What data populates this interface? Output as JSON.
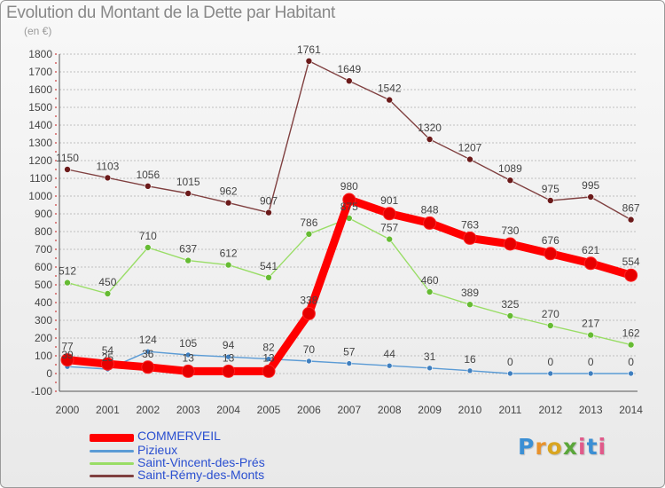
{
  "chart_data": {
    "type": "line",
    "title": "Evolution du Montant de la Dette par Habitant",
    "unit_label": "(en €)",
    "xlabel": "",
    "ylabel": "",
    "categories": [
      "2000",
      "2001",
      "2002",
      "2003",
      "2004",
      "2005",
      "2006",
      "2007",
      "2008",
      "2009",
      "2010",
      "2011",
      "2012",
      "2013",
      "2014"
    ],
    "ylim": [
      -100,
      1800
    ],
    "yticks": [
      -100,
      0,
      100,
      200,
      300,
      400,
      500,
      600,
      700,
      800,
      900,
      1000,
      1100,
      1200,
      1300,
      1400,
      1500,
      1600,
      1700,
      1800
    ],
    "grid": "horizontal",
    "legend_position": "bottom-left",
    "series": [
      {
        "name": "COMMERVEIL",
        "color": "#ff0000",
        "marker_color": "#e60000",
        "values": [
          77,
          54,
          36,
          13,
          13,
          13,
          338,
          980,
          901,
          848,
          763,
          730,
          676,
          621,
          554
        ],
        "labels": [
          "77",
          "54",
          "36",
          "13",
          "13",
          "13",
          "338",
          "980",
          "901",
          "848",
          "763",
          "730",
          "676",
          "621",
          "554"
        ]
      },
      {
        "name": "Pizieux",
        "color": "#5b9bd5",
        "marker_color": "#3f7fbf",
        "values": [
          39,
          25,
          124,
          105,
          94,
          82,
          70,
          57,
          44,
          31,
          16,
          0,
          0,
          0,
          0
        ],
        "labels": [
          "39",
          "25",
          "124",
          "105",
          "94",
          "82",
          "70",
          "57",
          "44",
          "31",
          "16",
          "0",
          "0",
          "0",
          "0"
        ]
      },
      {
        "name": "Saint-Vincent-des-Prés",
        "color": "#99dd66",
        "marker_color": "#66bb33",
        "values": [
          512,
          450,
          710,
          637,
          612,
          541,
          786,
          875,
          757,
          460,
          389,
          325,
          270,
          217,
          162
        ],
        "labels": [
          "512",
          "450",
          "710",
          "637",
          "612",
          "541",
          "786",
          "875",
          "757",
          "460",
          "389",
          "325",
          "270",
          "217",
          "162"
        ]
      },
      {
        "name": "Saint-Rémy-des-Monts",
        "color": "#804040",
        "marker_color": "#6b1a1a",
        "values": [
          1150,
          1103,
          1056,
          1015,
          962,
          907,
          1761,
          1649,
          1542,
          1320,
          1207,
          1089,
          975,
          995,
          867
        ],
        "labels": [
          "1150",
          "1103",
          "1056",
          "1015",
          "962",
          "907",
          "1761",
          "1649",
          "1542",
          "1320",
          "1207",
          "1089",
          "975",
          "995",
          "867"
        ]
      }
    ],
    "legend": [
      {
        "label": "COMMERVEIL",
        "color": "#ff0000",
        "text_color": "#2a4fd0"
      },
      {
        "label": "Pizieux",
        "color": "#5b9bd5",
        "text_color": "#2a4fd0"
      },
      {
        "label": "Saint-Vincent-des-Prés",
        "color": "#99dd66",
        "text_color": "#2a4fd0"
      },
      {
        "label": "Saint-Rémy-des-Monts",
        "color": "#804040",
        "text_color": "#2a4fd0"
      }
    ]
  },
  "logo": {
    "text": "Proxiti",
    "p": "P",
    "r": "r",
    "o": "o",
    "x": "x",
    "i": "i",
    "t": "t",
    "i2": "i"
  }
}
